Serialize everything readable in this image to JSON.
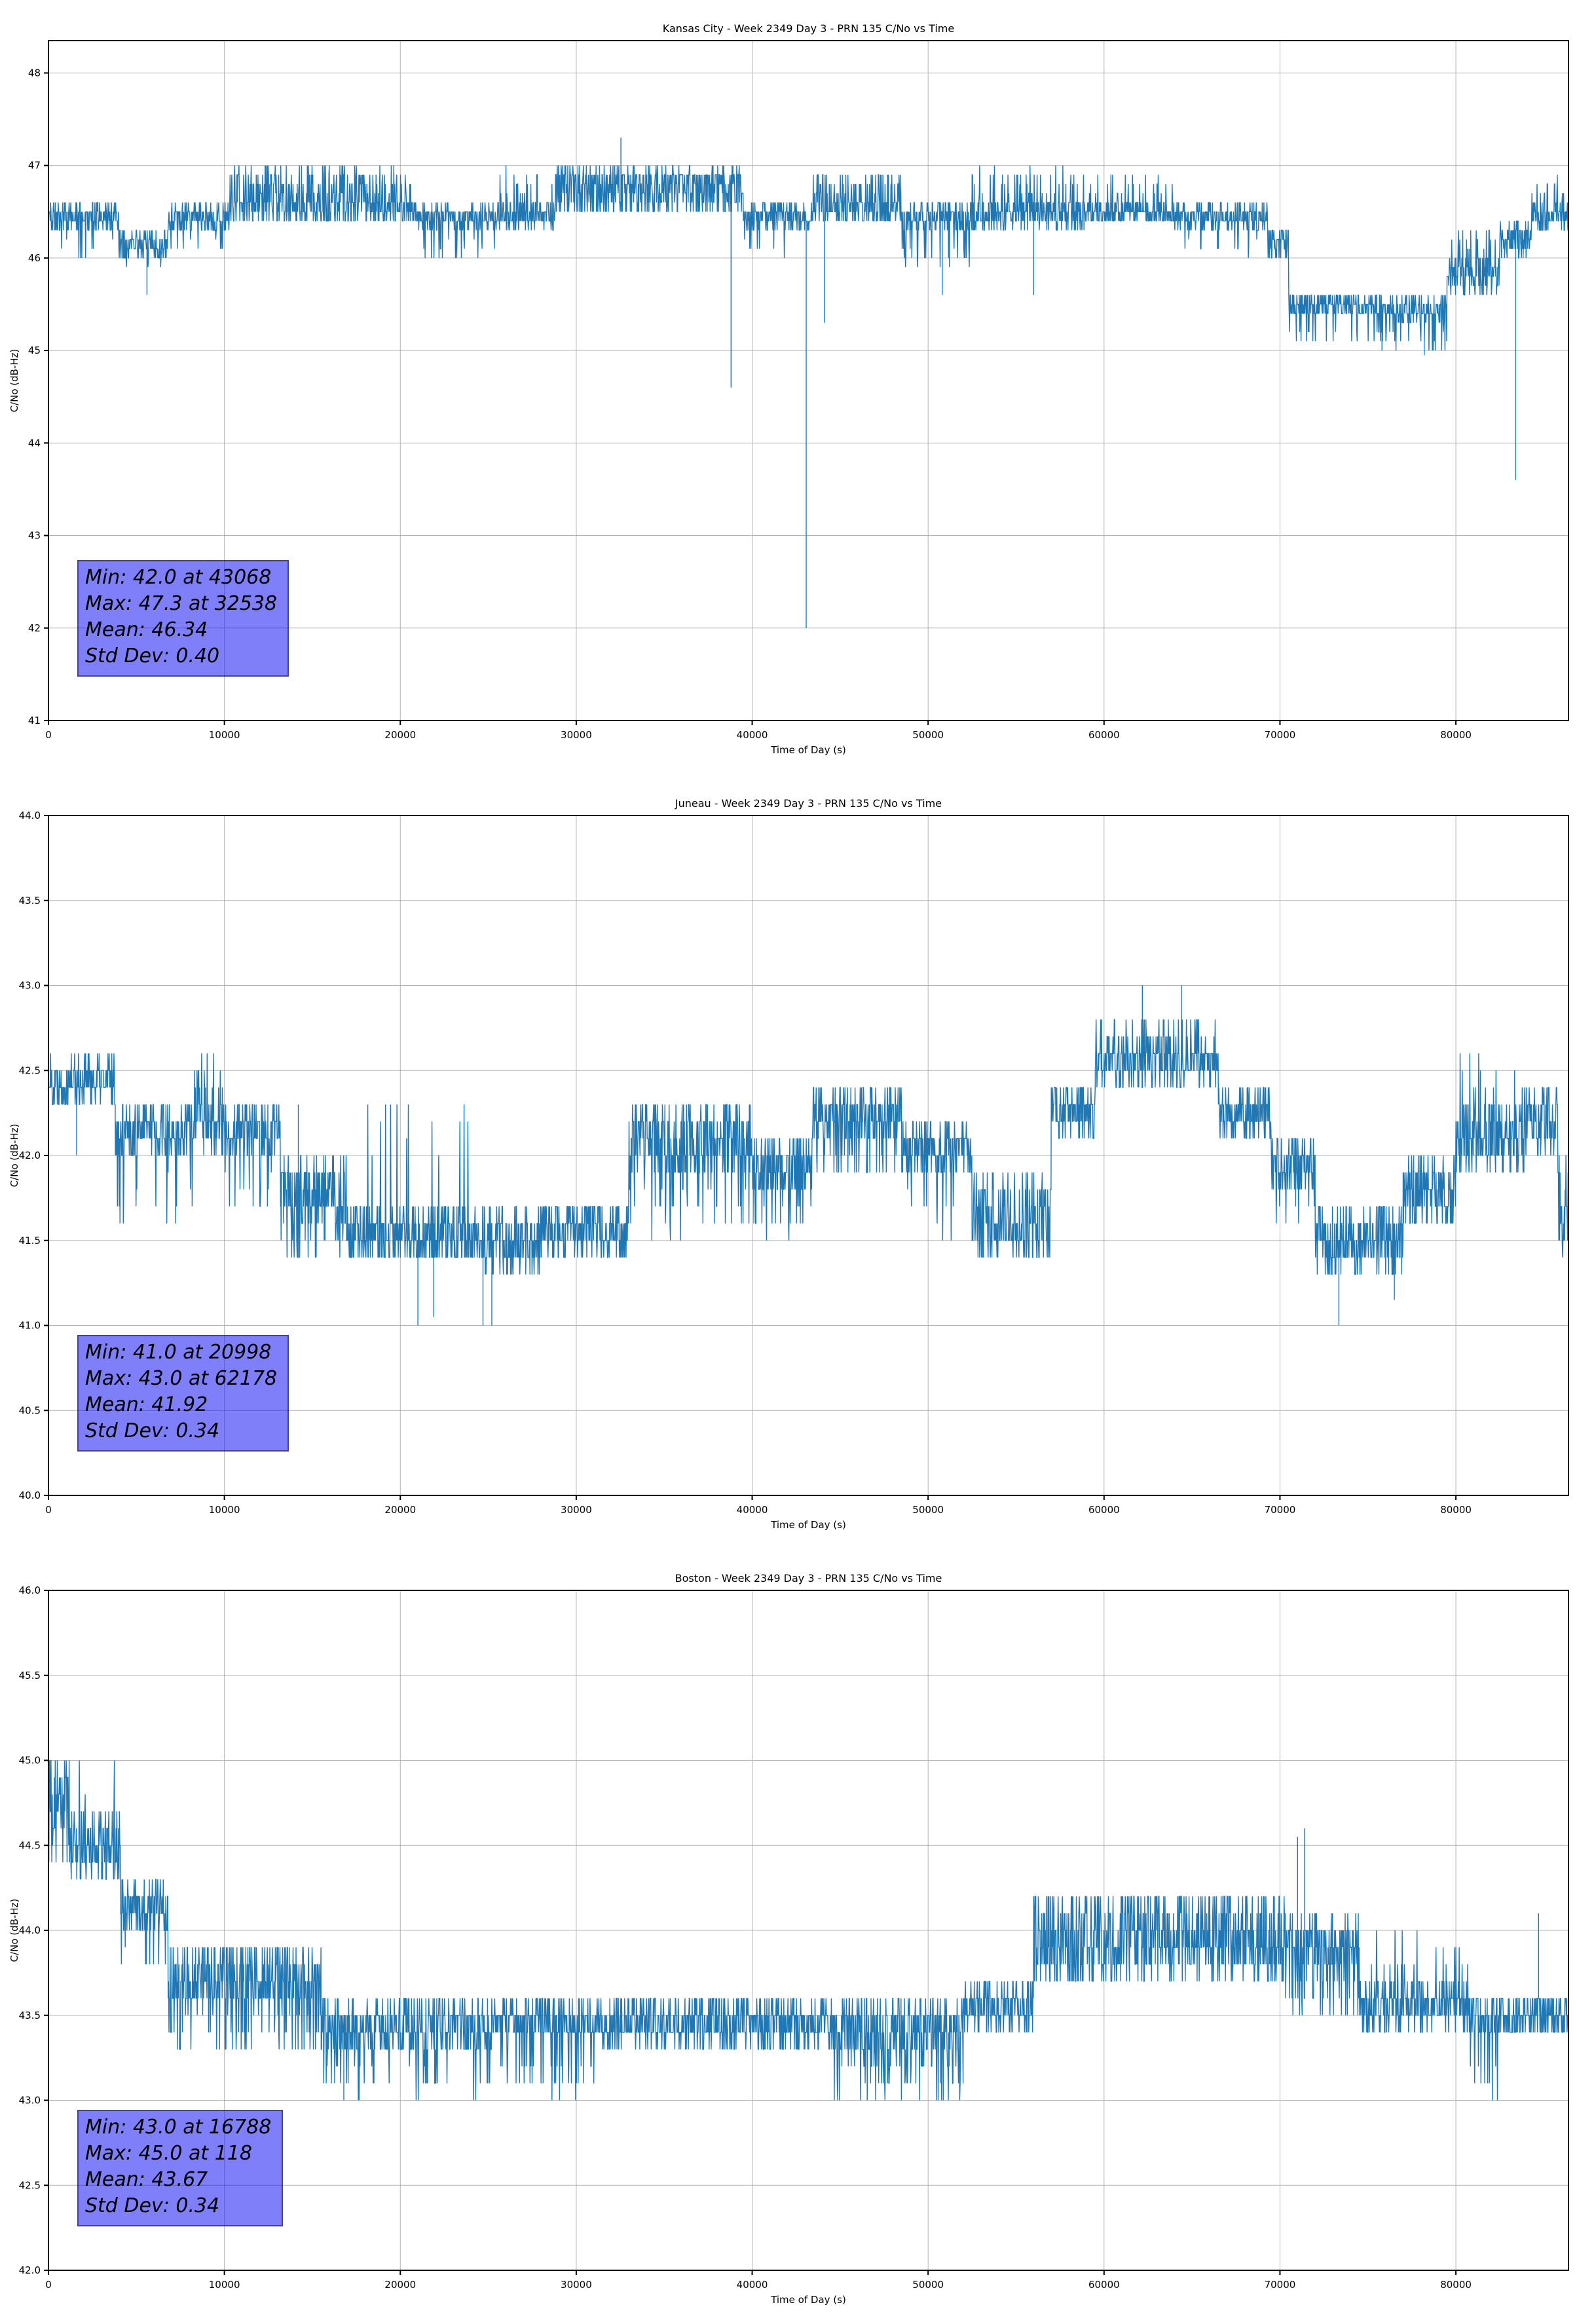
{
  "colors": {
    "line": "#1f77b4",
    "grid": "#b3b3b3",
    "axis": "#000000",
    "annotation_bg": "#7f7ff7",
    "annotation_border": "#3d3d55",
    "background": "#ffffff"
  },
  "chart_data": [
    {
      "type": "line",
      "location": "Kansas City",
      "title": "Kansas City - Week 2349 Day 3 - PRN 135 C/No vs Time",
      "xlabel": "Time of Day (s)",
      "ylabel": "C/No (dB-Hz)",
      "xlim": [
        0,
        86400
      ],
      "ylim": [
        41,
        48.35
      ],
      "xticks": [
        0,
        10000,
        20000,
        30000,
        40000,
        50000,
        60000,
        70000,
        80000
      ],
      "yticks": [
        41,
        42,
        43,
        44,
        45,
        46,
        47,
        48
      ],
      "ytick_decimals": 0,
      "grid": true,
      "legend": "none",
      "stats": {
        "min": 42.0,
        "min_time": 43068,
        "max": 47.3,
        "max_time": 32538,
        "mean": 46.34,
        "std_dev": 0.4
      },
      "annotation_lines": [
        "Min: 42.0 at 43068",
        "Max: 47.3 at 32538",
        "Mean: 46.34",
        "Std Dev: 0.40"
      ],
      "seed": 11,
      "sample_interval_s": 24,
      "segments": [
        {
          "t0": 0,
          "t1": 4000,
          "base": [
            46.3,
            46.6
          ],
          "alt": [
            46.0,
            46.2
          ],
          "p": 0.07
        },
        {
          "t0": 4000,
          "t1": 6800,
          "base": [
            46.0,
            46.3
          ],
          "alt": [
            45.9,
            46.1
          ],
          "p": 0.05
        },
        {
          "t0": 6800,
          "t1": 10300,
          "base": [
            46.3,
            46.6
          ],
          "alt": [
            46.0,
            46.2
          ],
          "p": 0.08
        },
        {
          "t0": 10300,
          "t1": 18500,
          "base": [
            46.35,
            46.65
          ],
          "alt": [
            46.65,
            47.0
          ],
          "p": 0.45
        },
        {
          "t0": 18500,
          "t1": 21000,
          "base": [
            46.35,
            46.65
          ],
          "alt": [
            46.65,
            47.0
          ],
          "p": 0.22
        },
        {
          "t0": 21000,
          "t1": 25500,
          "base": [
            46.3,
            46.6
          ],
          "alt": [
            45.95,
            46.2
          ],
          "p": 0.1
        },
        {
          "t0": 25500,
          "t1": 28800,
          "base": [
            46.3,
            46.6
          ],
          "alt": [
            46.6,
            47.0
          ],
          "p": 0.18
        },
        {
          "t0": 28800,
          "t1": 39500,
          "base": [
            46.45,
            46.9
          ],
          "alt": [
            46.8,
            47.0
          ],
          "p": 0.4
        },
        {
          "t0": 39500,
          "t1": 43400,
          "base": [
            46.3,
            46.6
          ],
          "alt": [
            46.0,
            46.2
          ],
          "p": 0.05
        },
        {
          "t0": 43400,
          "t1": 48500,
          "base": [
            46.35,
            46.65
          ],
          "alt": [
            46.65,
            46.95
          ],
          "p": 0.3
        },
        {
          "t0": 48500,
          "t1": 52500,
          "base": [
            46.3,
            46.6
          ],
          "alt": [
            45.9,
            46.15
          ],
          "p": 0.12
        },
        {
          "t0": 52500,
          "t1": 59000,
          "base": [
            46.3,
            46.6
          ],
          "alt": [
            46.6,
            47.0
          ],
          "p": 0.2
        },
        {
          "t0": 59000,
          "t1": 64000,
          "base": [
            46.35,
            46.6
          ],
          "alt": [
            46.6,
            46.95
          ],
          "p": 0.14
        },
        {
          "t0": 64000,
          "t1": 69300,
          "base": [
            46.3,
            46.6
          ],
          "alt": [
            46.0,
            46.2
          ],
          "p": 0.07
        },
        {
          "t0": 69300,
          "t1": 70500,
          "base": [
            46.0,
            46.35
          ],
          "alt": null,
          "p": 0
        },
        {
          "t0": 70500,
          "t1": 76500,
          "base": [
            45.35,
            45.65
          ],
          "alt": [
            45.05,
            45.25
          ],
          "p": 0.13
        },
        {
          "t0": 76500,
          "t1": 79500,
          "base": [
            45.3,
            45.6
          ],
          "alt": [
            45.0,
            45.2
          ],
          "p": 0.1
        },
        {
          "t0": 79500,
          "t1": 82500,
          "base": [
            45.6,
            46.0
          ],
          "alt": [
            46.0,
            46.3
          ],
          "p": 0.22
        },
        {
          "t0": 82500,
          "t1": 84300,
          "base": [
            46.0,
            46.4
          ],
          "alt": null,
          "p": 0
        },
        {
          "t0": 84300,
          "t1": 86400,
          "base": [
            46.3,
            46.6
          ],
          "alt": [
            46.6,
            46.9
          ],
          "p": 0.18
        }
      ],
      "spikes": [
        {
          "t": 5600,
          "v": 45.6
        },
        {
          "t": 32538,
          "v": 47.3
        },
        {
          "t": 38800,
          "v": 44.6
        },
        {
          "t": 43068,
          "v": 42.0
        },
        {
          "t": 44100,
          "v": 45.3
        },
        {
          "t": 50800,
          "v": 45.6
        },
        {
          "t": 56000,
          "v": 45.6
        },
        {
          "t": 75800,
          "v": 45.0
        },
        {
          "t": 78200,
          "v": 44.95
        },
        {
          "t": 83400,
          "v": 43.6
        }
      ]
    },
    {
      "type": "line",
      "location": "Juneau",
      "title": "Juneau - Week 2349 Day 3 - PRN 135 C/No vs Time",
      "xlabel": "Time of Day (s)",
      "ylabel": "C/No (dB-Hz)",
      "xlim": [
        0,
        86400
      ],
      "ylim": [
        40.0,
        44.0
      ],
      "xticks": [
        0,
        10000,
        20000,
        30000,
        40000,
        50000,
        60000,
        70000,
        80000
      ],
      "yticks": [
        40.0,
        40.5,
        41.0,
        41.5,
        42.0,
        42.5,
        43.0,
        43.5,
        44.0
      ],
      "ytick_decimals": 1,
      "grid": true,
      "legend": "none",
      "stats": {
        "min": 41.0,
        "min_time": 20998,
        "max": 43.0,
        "max_time": 62178,
        "mean": 41.92,
        "std_dev": 0.34
      },
      "annotation_lines": [
        "Min: 41.0 at 20998",
        "Max: 43.0 at 62178",
        "Mean: 41.92",
        "Std Dev: 0.34"
      ],
      "seed": 22,
      "sample_interval_s": 24,
      "segments": [
        {
          "t0": 0,
          "t1": 3800,
          "base": [
            42.3,
            42.6
          ],
          "alt": null,
          "p": 0
        },
        {
          "t0": 3800,
          "t1": 8300,
          "base": [
            42.0,
            42.3
          ],
          "alt": [
            41.6,
            41.9
          ],
          "p": 0.08
        },
        {
          "t0": 8300,
          "t1": 10000,
          "base": [
            42.0,
            42.3
          ],
          "alt": [
            42.3,
            42.6
          ],
          "p": 0.35
        },
        {
          "t0": 10000,
          "t1": 13200,
          "base": [
            42.0,
            42.3
          ],
          "alt": [
            41.6,
            41.9
          ],
          "p": 0.1
        },
        {
          "t0": 13200,
          "t1": 17000,
          "base": [
            41.6,
            42.0
          ],
          "alt": [
            41.35,
            41.55
          ],
          "p": 0.15
        },
        {
          "t0": 17000,
          "t1": 24800,
          "base": [
            41.35,
            41.7
          ],
          "alt": [
            41.9,
            42.3
          ],
          "p": 0.03
        },
        {
          "t0": 24800,
          "t1": 28200,
          "base": [
            41.3,
            41.7
          ],
          "alt": null,
          "p": 0
        },
        {
          "t0": 28200,
          "t1": 33000,
          "base": [
            41.4,
            41.75
          ],
          "alt": null,
          "p": 0
        },
        {
          "t0": 33000,
          "t1": 40000,
          "base": [
            41.9,
            42.3
          ],
          "alt": [
            41.5,
            41.85
          ],
          "p": 0.13
        },
        {
          "t0": 40000,
          "t1": 43400,
          "base": [
            41.75,
            42.1
          ],
          "alt": [
            41.5,
            41.7
          ],
          "p": 0.1
        },
        {
          "t0": 43400,
          "t1": 48500,
          "base": [
            42.1,
            42.4
          ],
          "alt": [
            41.85,
            42.05
          ],
          "p": 0.12
        },
        {
          "t0": 48500,
          "t1": 52500,
          "base": [
            41.9,
            42.2
          ],
          "alt": [
            41.5,
            41.8
          ],
          "p": 0.1
        },
        {
          "t0": 52500,
          "t1": 57000,
          "base": [
            41.45,
            41.9
          ],
          "alt": [
            41.35,
            41.5
          ],
          "p": 0.18
        },
        {
          "t0": 57000,
          "t1": 59500,
          "base": [
            42.1,
            42.4
          ],
          "alt": null,
          "p": 0
        },
        {
          "t0": 59500,
          "t1": 66500,
          "base": [
            42.4,
            42.7
          ],
          "alt": [
            42.75,
            42.85
          ],
          "p": 0.08
        },
        {
          "t0": 66500,
          "t1": 69500,
          "base": [
            42.1,
            42.4
          ],
          "alt": null,
          "p": 0
        },
        {
          "t0": 69500,
          "t1": 72000,
          "base": [
            41.8,
            42.1
          ],
          "alt": [
            41.6,
            41.75
          ],
          "p": 0.1
        },
        {
          "t0": 72000,
          "t1": 77000,
          "base": [
            41.3,
            41.7
          ],
          "alt": null,
          "p": 0
        },
        {
          "t0": 77000,
          "t1": 80000,
          "base": [
            41.6,
            42.0
          ],
          "alt": null,
          "p": 0
        },
        {
          "t0": 80000,
          "t1": 84000,
          "base": [
            41.9,
            42.3
          ],
          "alt": [
            42.3,
            42.6
          ],
          "p": 0.08
        },
        {
          "t0": 84000,
          "t1": 85800,
          "base": [
            42.0,
            42.4
          ],
          "alt": null,
          "p": 0
        },
        {
          "t0": 85800,
          "t1": 86400,
          "base": [
            41.4,
            42.0
          ],
          "alt": null,
          "p": 0
        }
      ],
      "spikes": [
        {
          "t": 1600,
          "v": 42.0
        },
        {
          "t": 14200,
          "v": 42.3
        },
        {
          "t": 20998,
          "v": 41.0
        },
        {
          "t": 21900,
          "v": 41.05
        },
        {
          "t": 24700,
          "v": 41.0
        },
        {
          "t": 25200,
          "v": 41.0
        },
        {
          "t": 62178,
          "v": 43.0
        },
        {
          "t": 64400,
          "v": 43.0
        },
        {
          "t": 73350,
          "v": 41.0
        },
        {
          "t": 76500,
          "v": 41.15
        }
      ]
    },
    {
      "type": "line",
      "location": "Boston",
      "title": "Boston - Week 2349 Day 3 - PRN 135 C/No vs Time",
      "xlabel": "Time of Day (s)",
      "ylabel": "C/No (dB-Hz)",
      "xlim": [
        0,
        86400
      ],
      "ylim": [
        42.0,
        46.0
      ],
      "xticks": [
        0,
        10000,
        20000,
        30000,
        40000,
        50000,
        60000,
        70000,
        80000
      ],
      "yticks": [
        42.0,
        42.5,
        43.0,
        43.5,
        44.0,
        44.5,
        45.0,
        45.5,
        46.0
      ],
      "ytick_decimals": 1,
      "grid": true,
      "legend": "none",
      "stats": {
        "min": 43.0,
        "min_time": 16788,
        "max": 45.0,
        "max_time": 118,
        "mean": 43.67,
        "std_dev": 0.34
      },
      "annotation_lines": [
        "Min: 43.0 at 16788",
        "Max: 45.0 at 118",
        "Mean: 43.67",
        "Std Dev: 0.34"
      ],
      "seed": 33,
      "sample_interval_s": 24,
      "segments": [
        {
          "t0": 0,
          "t1": 1200,
          "base": [
            44.4,
            44.7
          ],
          "alt": [
            44.75,
            45.0
          ],
          "p": 0.5
        },
        {
          "t0": 1200,
          "t1": 4100,
          "base": [
            44.3,
            44.7
          ],
          "alt": [
            44.8,
            45.0
          ],
          "p": 0.04
        },
        {
          "t0": 4100,
          "t1": 6800,
          "base": [
            43.95,
            44.3
          ],
          "alt": [
            43.75,
            43.9
          ],
          "p": 0.1
        },
        {
          "t0": 6800,
          "t1": 15500,
          "base": [
            43.55,
            43.95
          ],
          "alt": [
            43.25,
            43.5
          ],
          "p": 0.18
        },
        {
          "t0": 15500,
          "t1": 25500,
          "base": [
            43.3,
            43.6
          ],
          "alt": [
            43.0,
            43.2
          ],
          "p": 0.12
        },
        {
          "t0": 25500,
          "t1": 31500,
          "base": [
            43.35,
            43.6
          ],
          "alt": [
            43.0,
            43.25
          ],
          "p": 0.1
        },
        {
          "t0": 31500,
          "t1": 44500,
          "base": [
            43.3,
            43.6
          ],
          "alt": null,
          "p": 0
        },
        {
          "t0": 44500,
          "t1": 52000,
          "base": [
            43.3,
            43.6
          ],
          "alt": [
            43.0,
            43.3
          ],
          "p": 0.22
        },
        {
          "t0": 52000,
          "t1": 56000,
          "base": [
            43.4,
            43.7
          ],
          "alt": null,
          "p": 0
        },
        {
          "t0": 56000,
          "t1": 62000,
          "base": [
            43.65,
            44.05
          ],
          "alt": [
            44.05,
            44.25
          ],
          "p": 0.3
        },
        {
          "t0": 62000,
          "t1": 70300,
          "base": [
            43.7,
            44.0
          ],
          "alt": [
            44.0,
            44.25
          ],
          "p": 0.4
        },
        {
          "t0": 70300,
          "t1": 74500,
          "base": [
            43.7,
            44.1
          ],
          "alt": [
            43.45,
            43.6
          ],
          "p": 0.15
        },
        {
          "t0": 74500,
          "t1": 80800,
          "base": [
            43.4,
            43.7
          ],
          "alt": [
            43.75,
            44.0
          ],
          "p": 0.08
        },
        {
          "t0": 80800,
          "t1": 82500,
          "base": [
            43.35,
            43.65
          ],
          "alt": [
            43.0,
            43.2
          ],
          "p": 0.18
        },
        {
          "t0": 82500,
          "t1": 86400,
          "base": [
            43.35,
            43.65
          ],
          "alt": null,
          "p": 0
        }
      ],
      "spikes": [
        {
          "t": 118,
          "v": 45.0
        },
        {
          "t": 16788,
          "v": 43.0
        },
        {
          "t": 71000,
          "v": 44.55
        },
        {
          "t": 71400,
          "v": 44.6
        },
        {
          "t": 84700,
          "v": 44.1
        }
      ]
    }
  ]
}
